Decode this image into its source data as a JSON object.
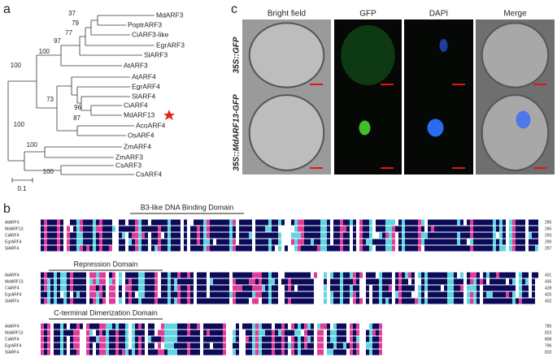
{
  "panel_a": {
    "label": "a",
    "leaves": [
      "MdARF3",
      "PoptrARF3",
      "CiARF3-like",
      "EgrARF3",
      "SlARF3",
      "AtARF3",
      "AtARF4",
      "EgrARF4",
      "SlARF4",
      "CiARF4",
      "MdARF13",
      "AcoARF4",
      "OsARF4",
      "ZmARF4",
      "ZmARF3",
      "CsARF3",
      "CsARF4"
    ],
    "bootstrap": [
      37,
      79,
      77,
      97,
      100,
      100,
      73,
      96,
      87,
      100,
      100,
      100
    ],
    "scale": "0.1"
  },
  "panel_c": {
    "label": "c",
    "columns": [
      "Bright field",
      "GFP",
      "DAPI",
      "Merge"
    ],
    "rows": [
      "35S::GFP",
      "35S::MdARF13-GFP"
    ]
  },
  "panel_b": {
    "label": "b",
    "blocks": [
      {
        "domain": "B3-like DNA Binding Domain",
        "names": [
          "AtARF4",
          "MdARF13",
          "CiARF4",
          "EgrARF4",
          "SlARF4"
        ],
        "ends": [
          295,
          265,
          293,
          290,
          297
        ]
      },
      {
        "domain": "Repression Domain",
        "names": [
          "AtARF4",
          "MdARF13",
          "CiARF4",
          "EgrARF4",
          "SlARF4"
        ],
        "ends": [
          431,
          435,
          428,
          425,
          432
        ]
      },
      {
        "domain": "C-terminal Dimerization Domain",
        "names": [
          "AtARF4",
          "MdARF13",
          "CiARF4",
          "EgrARF4",
          "SlARF4"
        ],
        "ends": [
          785,
          823,
          808,
          796,
          810
        ]
      }
    ]
  }
}
